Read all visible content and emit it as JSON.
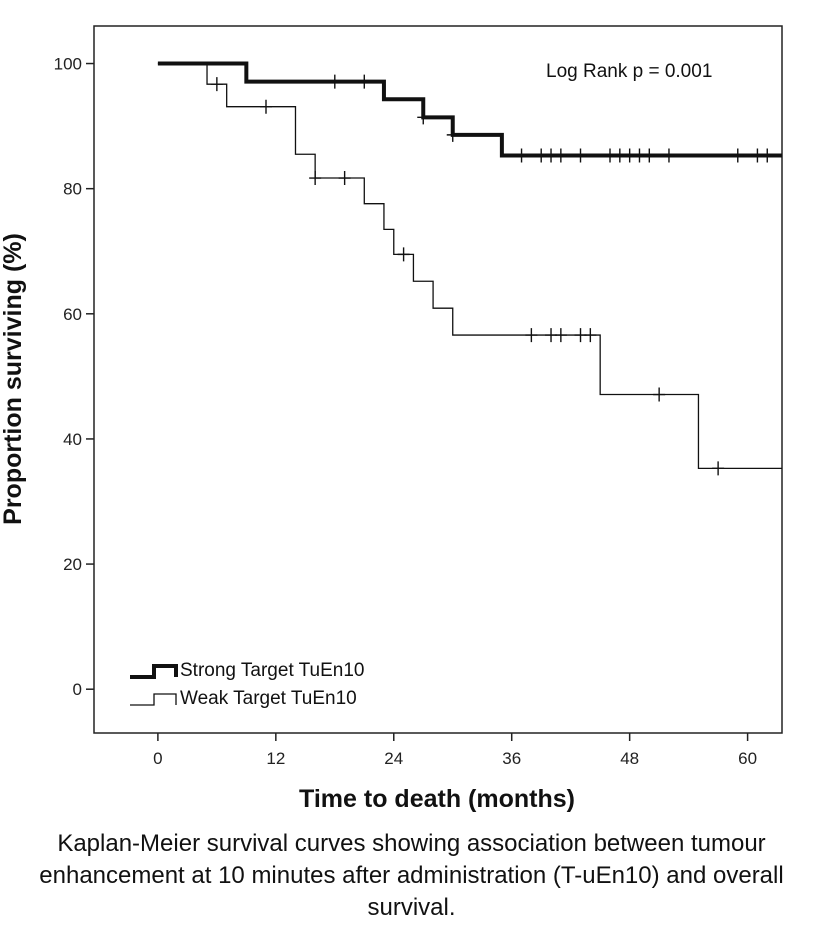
{
  "chart_data": {
    "type": "line",
    "subtype": "kaplan-meier step",
    "xlabel": "Time to death (months)",
    "ylabel": "Proportion surviving (%)",
    "xlim": [
      -6.5,
      63.5
    ],
    "ylim": [
      -7,
      106
    ],
    "xticks": [
      0,
      12,
      24,
      36,
      48,
      60
    ],
    "yticks": [
      0,
      20,
      40,
      60,
      80,
      100
    ],
    "grid": false,
    "legend_position": "bottom-left",
    "annotation": "Log Rank p = 0.001",
    "series": [
      {
        "name": "Strong Target TuEn10",
        "style": "thick",
        "steps": [
          [
            0,
            100
          ],
          [
            9,
            97.1
          ],
          [
            23,
            94.3
          ],
          [
            27,
            91.4
          ],
          [
            30,
            88.6
          ],
          [
            35,
            85.3
          ],
          [
            63.5,
            85.3
          ]
        ],
        "censored": [
          [
            18,
            97.1
          ],
          [
            21,
            97.1
          ],
          [
            27,
            91.4
          ],
          [
            30,
            88.6
          ],
          [
            37,
            85.3
          ],
          [
            39,
            85.3
          ],
          [
            40,
            85.3
          ],
          [
            41,
            85.3
          ],
          [
            43,
            85.3
          ],
          [
            46,
            85.3
          ],
          [
            47,
            85.3
          ],
          [
            48,
            85.3
          ],
          [
            49,
            85.3
          ],
          [
            50,
            85.3
          ],
          [
            52,
            85.3
          ],
          [
            59,
            85.3
          ],
          [
            61,
            85.3
          ],
          [
            62,
            85.3
          ]
        ]
      },
      {
        "name": "Weak Target TuEn10",
        "style": "thin",
        "steps": [
          [
            0,
            100
          ],
          [
            5,
            96.7
          ],
          [
            7,
            93.1
          ],
          [
            14,
            85.5
          ],
          [
            16,
            81.7
          ],
          [
            21,
            77.6
          ],
          [
            23,
            73.5
          ],
          [
            24,
            69.5
          ],
          [
            26,
            65.2
          ],
          [
            28,
            60.9
          ],
          [
            30,
            56.6
          ],
          [
            45,
            47.1
          ],
          [
            55,
            35.3
          ],
          [
            63.5,
            35.3
          ]
        ],
        "censored": [
          [
            6,
            96.7
          ],
          [
            11,
            93.1
          ],
          [
            16,
            81.7
          ],
          [
            19,
            81.7
          ],
          [
            25,
            69.5
          ],
          [
            38,
            56.6
          ],
          [
            40,
            56.6
          ],
          [
            41,
            56.6
          ],
          [
            43,
            56.6
          ],
          [
            44,
            56.6
          ],
          [
            51,
            47.1
          ],
          [
            57,
            35.3
          ]
        ]
      }
    ]
  },
  "caption": "Kaplan-Meier survival curves showing association between tumour enhancement at 10 minutes after administration (T-uEn10) and overall survival."
}
